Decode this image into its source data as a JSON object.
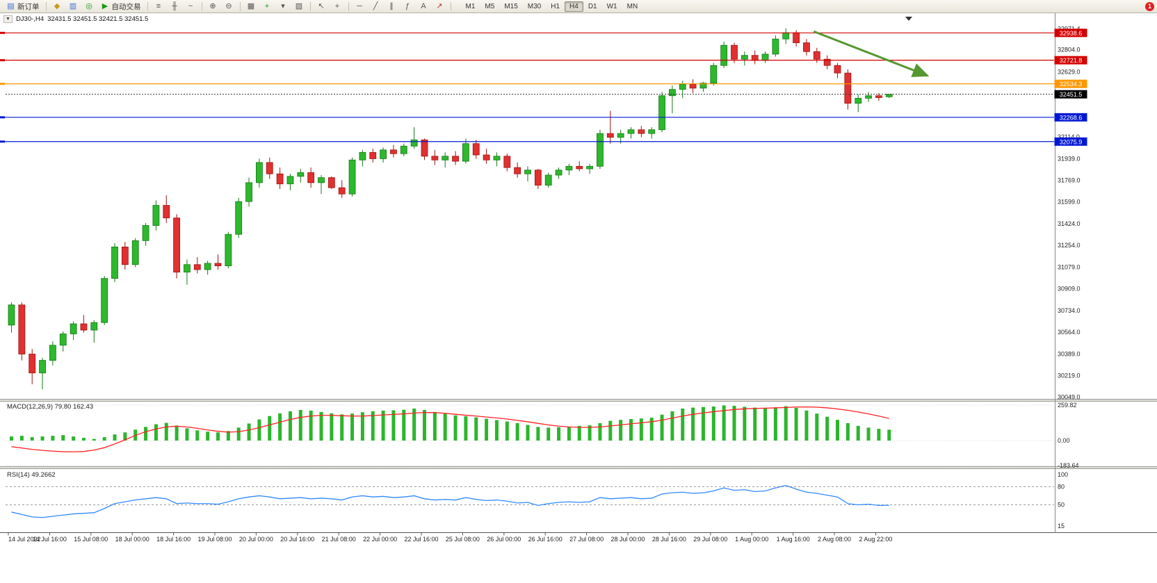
{
  "toolbar": {
    "new_order_label": "新订单",
    "autotrade_label": "自动交易",
    "timeframes": [
      "M1",
      "M5",
      "M15",
      "M30",
      "H1",
      "H4",
      "D1",
      "W1",
      "MN"
    ],
    "active_timeframe": "H4",
    "notification_badge": "1",
    "icons": {
      "new_order": "▤",
      "funds": "◆",
      "accounts": "▥",
      "support": "◎",
      "autotrade_play": "▶",
      "bar_chart": "≡",
      "candle_chart": "╫",
      "line_chart": "~",
      "zoom_in": "⊕",
      "zoom_out": "⊖",
      "tile_windows": "▦",
      "indicators": "+",
      "periods": "▾",
      "templates": "▨",
      "cursor": "↖",
      "crosshair": "+",
      "horizontal_line": "─",
      "trendline": "╱",
      "channel": "∥",
      "fibonacci": "ƒ",
      "text_tool": "A",
      "arrows_tool": "↗"
    }
  },
  "chart_header": {
    "collapse_icon": "▼",
    "symbol_period": "DJ30-,H4",
    "ohlc_text": "32431.5 32451.5 32421.5 32451.5"
  },
  "chart_data": {
    "type": "candlestick",
    "symbol": "DJ30-",
    "timeframe": "H4",
    "ohlc_quote": {
      "open": 32431.5,
      "high": 32451.5,
      "low": 32421.5,
      "close": 32451.5
    },
    "ylim": [
      30040,
      32990
    ],
    "up_color": "#2eb82e",
    "down_color": "#e03030",
    "price_axis_labels": [
      "32971.4",
      "32804.0",
      "32629.0",
      "32114.0",
      "31939.0",
      "31769.0",
      "31599.0",
      "31424.0",
      "31254.0",
      "31079.0",
      "30909.0",
      "30734.0",
      "30564.0",
      "30389.0",
      "30219.0",
      "30049.0"
    ],
    "time_labels": [
      "14 Jul 2022",
      "14 Jul 16:00",
      "15 Jul 08:00",
      "18 Jul 00:00",
      "18 Jul 16:00",
      "19 Jul 08:00",
      "20 Jul 00:00",
      "20 Jul 16:00",
      "21 Jul 08:00",
      "22 Jul 00:00",
      "22 Jul 16:00",
      "25 Jul 08:00",
      "26 Jul 00:00",
      "26 Jul 16:00",
      "27 Jul 08:00",
      "28 Jul 00:00",
      "28 Jul 16:00",
      "29 Jul 08:00",
      "1 Aug 00:00",
      "1 Aug 16:00",
      "2 Aug 08:00",
      "2 Aug 22:00"
    ],
    "candles_per_label": 4,
    "hlines": [
      {
        "price": 32938.6,
        "color": "#d40000"
      },
      {
        "price": 32721.8,
        "color": "#d40000"
      },
      {
        "price": 32534.3,
        "color": "#ff9800"
      },
      {
        "price": 32268.6,
        "color": "#0018d4"
      },
      {
        "price": 32075.9,
        "color": "#0018d4"
      }
    ],
    "current_price": 32451.5,
    "trend_arrow": {
      "from_idx": 78,
      "from_price": 32950,
      "to_idx": 89,
      "to_price": 32600,
      "color": "#55982f"
    },
    "candles": [
      [
        30620,
        30800,
        30560,
        30780
      ],
      [
        30780,
        30800,
        30340,
        30390
      ],
      [
        30390,
        30430,
        30150,
        30240
      ],
      [
        30240,
        30360,
        30110,
        30340
      ],
      [
        30340,
        30490,
        30300,
        30460
      ],
      [
        30460,
        30570,
        30410,
        30550
      ],
      [
        30550,
        30650,
        30500,
        30630
      ],
      [
        30630,
        30700,
        30560,
        30580
      ],
      [
        30580,
        30660,
        30480,
        30640
      ],
      [
        30640,
        31010,
        30620,
        30990
      ],
      [
        30990,
        31270,
        30960,
        31240
      ],
      [
        31240,
        31280,
        31060,
        31100
      ],
      [
        31100,
        31310,
        31080,
        31290
      ],
      [
        31290,
        31430,
        31250,
        31410
      ],
      [
        31410,
        31610,
        31370,
        31570
      ],
      [
        31570,
        31650,
        31430,
        31470
      ],
      [
        31470,
        31500,
        30990,
        31040
      ],
      [
        31040,
        31140,
        30940,
        31100
      ],
      [
        31100,
        31160,
        31030,
        31060
      ],
      [
        31060,
        31130,
        31020,
        31110
      ],
      [
        31110,
        31180,
        31060,
        31090
      ],
      [
        31090,
        31360,
        31070,
        31340
      ],
      [
        31340,
        31630,
        31310,
        31600
      ],
      [
        31600,
        31790,
        31560,
        31750
      ],
      [
        31750,
        31940,
        31710,
        31910
      ],
      [
        31910,
        31950,
        31780,
        31820
      ],
      [
        31820,
        31870,
        31700,
        31740
      ],
      [
        31740,
        31820,
        31690,
        31800
      ],
      [
        31800,
        31860,
        31750,
        31830
      ],
      [
        31830,
        31870,
        31710,
        31750
      ],
      [
        31750,
        31810,
        31660,
        31790
      ],
      [
        31790,
        31800,
        31700,
        31710
      ],
      [
        31710,
        31770,
        31630,
        31660
      ],
      [
        31660,
        31950,
        31640,
        31930
      ],
      [
        31930,
        32010,
        31880,
        31990
      ],
      [
        31990,
        32020,
        31910,
        31940
      ],
      [
        31940,
        32030,
        31910,
        32010
      ],
      [
        32010,
        32050,
        31950,
        31980
      ],
      [
        31980,
        32060,
        31960,
        32040
      ],
      [
        32040,
        32190,
        32020,
        32090
      ],
      [
        32090,
        32100,
        31930,
        31960
      ],
      [
        31960,
        32010,
        31890,
        31930
      ],
      [
        31930,
        31990,
        31870,
        31960
      ],
      [
        31960,
        32000,
        31890,
        31920
      ],
      [
        31920,
        32100,
        31900,
        32060
      ],
      [
        32060,
        32090,
        31940,
        31970
      ],
      [
        31970,
        32020,
        31900,
        31930
      ],
      [
        31930,
        31990,
        31880,
        31960
      ],
      [
        31960,
        31980,
        31840,
        31870
      ],
      [
        31870,
        31910,
        31790,
        31820
      ],
      [
        31820,
        31880,
        31760,
        31850
      ],
      [
        31850,
        31860,
        31700,
        31730
      ],
      [
        31730,
        31830,
        31710,
        31810
      ],
      [
        31810,
        31870,
        31780,
        31850
      ],
      [
        31850,
        31900,
        31810,
        31880
      ],
      [
        31880,
        31920,
        31840,
        31860
      ],
      [
        31860,
        31900,
        31820,
        31880
      ],
      [
        31880,
        32170,
        31860,
        32140
      ],
      [
        32140,
        32320,
        32060,
        32110
      ],
      [
        32110,
        32170,
        32060,
        32140
      ],
      [
        32140,
        32190,
        32100,
        32170
      ],
      [
        32170,
        32200,
        32110,
        32140
      ],
      [
        32140,
        32190,
        32100,
        32170
      ],
      [
        32170,
        32470,
        32150,
        32440
      ],
      [
        32440,
        32520,
        32300,
        32490
      ],
      [
        32490,
        32560,
        32420,
        32530
      ],
      [
        32530,
        32570,
        32460,
        32500
      ],
      [
        32500,
        32550,
        32470,
        32540
      ],
      [
        32540,
        32700,
        32520,
        32680
      ],
      [
        32680,
        32870,
        32660,
        32840
      ],
      [
        32840,
        32860,
        32700,
        32730
      ],
      [
        32730,
        32790,
        32680,
        32760
      ],
      [
        32760,
        32800,
        32690,
        32720
      ],
      [
        32720,
        32790,
        32700,
        32770
      ],
      [
        32770,
        32920,
        32750,
        32890
      ],
      [
        32890,
        32975,
        32850,
        32940
      ],
      [
        32940,
        32960,
        32830,
        32860
      ],
      [
        32860,
        32890,
        32760,
        32790
      ],
      [
        32790,
        32820,
        32700,
        32730
      ],
      [
        32730,
        32760,
        32650,
        32680
      ],
      [
        32680,
        32700,
        32580,
        32620
      ],
      [
        32620,
        32650,
        32330,
        32380
      ],
      [
        32380,
        32450,
        32310,
        32420
      ],
      [
        32420,
        32470,
        32390,
        32440
      ],
      [
        32440,
        32460,
        32400,
        32425
      ],
      [
        32431.5,
        32451.5,
        32421.5,
        32451.5
      ]
    ],
    "macd": {
      "label": "MACD(12,26,9)",
      "value_main": "79.80",
      "value_signal": "162.43",
      "axis_labels": [
        "259.82",
        "0.00",
        "-183.64"
      ],
      "axis_values": [
        259.82,
        0,
        -183.64
      ],
      "hist_color": "#2db52d",
      "signal_color": "#ff2020",
      "histogram": [
        30,
        35,
        25,
        30,
        35,
        40,
        30,
        20,
        12,
        25,
        45,
        60,
        80,
        100,
        120,
        130,
        110,
        90,
        75,
        65,
        60,
        70,
        95,
        125,
        155,
        180,
        200,
        215,
        225,
        220,
        210,
        200,
        192,
        198,
        208,
        215,
        220,
        222,
        226,
        235,
        225,
        210,
        196,
        185,
        178,
        170,
        160,
        150,
        140,
        128,
        115,
        100,
        95,
        98,
        102,
        108,
        112,
        128,
        145,
        152,
        158,
        162,
        168,
        190,
        215,
        235,
        242,
        246,
        250,
        258,
        255,
        248,
        242,
        238,
        244,
        252,
        240,
        220,
        198,
        175,
        152,
        128,
        108,
        95,
        86,
        79.8
      ],
      "signal": [
        -45,
        -55,
        -65,
        -72,
        -78,
        -82,
        -83,
        -80,
        -70,
        -52,
        -25,
        5,
        38,
        65,
        85,
        100,
        105,
        100,
        90,
        78,
        68,
        62,
        65,
        78,
        95,
        115,
        135,
        155,
        170,
        180,
        185,
        185,
        182,
        180,
        180,
        183,
        188,
        192,
        196,
        202,
        206,
        205,
        200,
        193,
        186,
        180,
        173,
        166,
        158,
        148,
        138,
        126,
        115,
        106,
        100,
        97,
        97,
        100,
        107,
        115,
        123,
        130,
        138,
        150,
        165,
        180,
        193,
        203,
        212,
        220,
        228,
        233,
        236,
        238,
        240,
        243,
        246,
        247,
        245,
        240,
        232,
        222,
        210,
        196,
        180,
        162.43
      ]
    },
    "rsi": {
      "label": "RSI(14)",
      "value": "49.2662",
      "axis_labels": [
        "100",
        "80",
        "50",
        "15"
      ],
      "axis_values": [
        100,
        80,
        50,
        15
      ],
      "dashed_levels": [
        80,
        50
      ],
      "color": "#2f89ff",
      "values": [
        38,
        34,
        30,
        29,
        31,
        33,
        35,
        36,
        37,
        44,
        52,
        55,
        58,
        60,
        62,
        60,
        52,
        53,
        52,
        52,
        51,
        55,
        60,
        63,
        65,
        63,
        60,
        61,
        62,
        60,
        61,
        60,
        58,
        63,
        65,
        63,
        64,
        62,
        63,
        65,
        60,
        58,
        59,
        58,
        62,
        59,
        57,
        58,
        56,
        53,
        54,
        49,
        52,
        54,
        55,
        54,
        55,
        62,
        60,
        61,
        62,
        60,
        61,
        68,
        70,
        71,
        69,
        70,
        73,
        78,
        74,
        75,
        72,
        73,
        78,
        82,
        76,
        71,
        69,
        66,
        63,
        52,
        50,
        51,
        49,
        49.27
      ]
    }
  }
}
